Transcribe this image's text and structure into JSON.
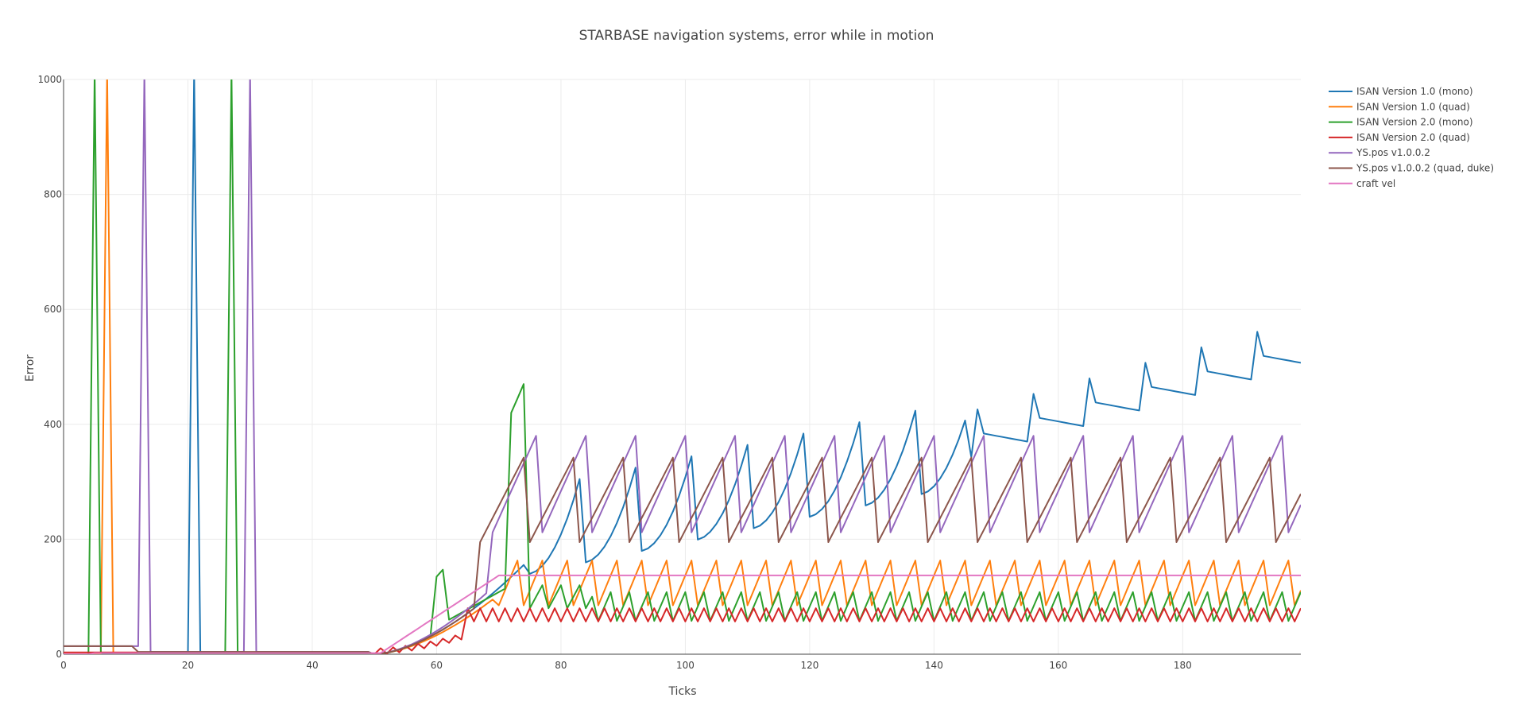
{
  "chart_data": {
    "type": "line",
    "title": "STARBASE navigation systems, error while in motion",
    "xlabel": "Ticks",
    "ylabel": "Error",
    "xlim": [
      0,
      199
    ],
    "ylim": [
      0,
      1000
    ],
    "xticks": [
      0,
      20,
      40,
      60,
      80,
      100,
      120,
      140,
      160,
      180
    ],
    "yticks": [
      0,
      200,
      400,
      600,
      800,
      1000
    ],
    "grid": true,
    "legend_position": "right",
    "series": [
      {
        "name": "ISAN Version 1.0 (mono)",
        "color": "#1f77b4"
      },
      {
        "name": "ISAN Version 1.0 (quad)",
        "color": "#ff7f0e"
      },
      {
        "name": "ISAN Version 2.0 (mono)",
        "color": "#2ca02c"
      },
      {
        "name": "ISAN Version 2.0 (quad)",
        "color": "#d62728"
      },
      {
        "name": "YS.pos v1.0.0.2",
        "color": "#9467bd"
      },
      {
        "name": "YS.pos v1.0.0.2 (quad, duke)",
        "color": "#8c564b"
      },
      {
        "name": "craft vel",
        "color": "#e377c2"
      }
    ]
  }
}
